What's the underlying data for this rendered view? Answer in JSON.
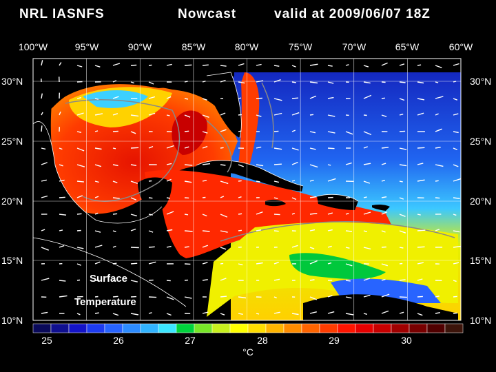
{
  "header": {
    "agency": "NRL IASNFS",
    "product": "Nowcast",
    "valid": "valid at 2009/06/07 18Z"
  },
  "axes": {
    "lon_labels": [
      "100°W",
      "95°W",
      "90°W",
      "85°W",
      "80°W",
      "75°W",
      "70°W",
      "65°W",
      "60°W"
    ],
    "lat_labels": [
      "30°N",
      "25°N",
      "20°N",
      "15°N",
      "10°N"
    ]
  },
  "map": {
    "variable_line1": "Surface",
    "variable_line2": "Temperature",
    "region": "Gulf of Mexico / Caribbean",
    "lon_range": [
      -100,
      -60
    ],
    "lat_range": [
      10,
      31
    ]
  },
  "colorbar": {
    "unit": "°C",
    "ticks": [
      "25",
      "26",
      "27",
      "28",
      "29",
      "30"
    ],
    "range": [
      24.75,
      30.75
    ],
    "colors": [
      "#0a0a5a",
      "#101090",
      "#1414c8",
      "#1e3cf0",
      "#2864ff",
      "#2d8cff",
      "#32b4ff",
      "#3ce6ff",
      "#00d23c",
      "#78e628",
      "#c8f01e",
      "#ffff00",
      "#ffdc00",
      "#ffb400",
      "#ff8c00",
      "#ff6400",
      "#ff3c00",
      "#ff1400",
      "#e60000",
      "#c80000",
      "#a00000",
      "#780000",
      "#500000",
      "#3c140a"
    ]
  }
}
